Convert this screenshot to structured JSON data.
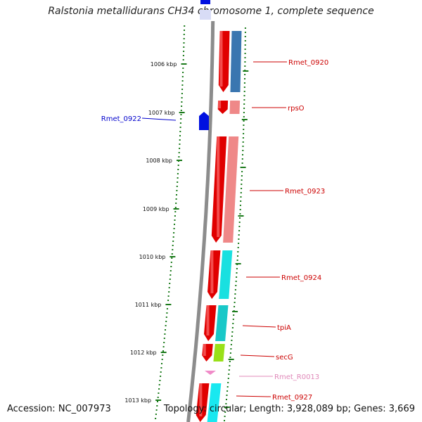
{
  "title": "Ralstonia metallidurans CH34 chromosome 1, complete sequence",
  "accession": "Accession: NC_007973",
  "topology": "Topology: circular; Length: 3,928,089 bp; Genes: 3,669",
  "colors": {
    "backbone": "#8c8c8c",
    "tick": "#1a7a1a",
    "gc_dots": "#1a7a1a",
    "cds": "#e00000",
    "cds_highlight": "#ff6a6a",
    "reverse_gene": "#0010e0",
    "label_red": "#cc0000",
    "label_blue": "#0000cc",
    "label_pink": "#e089b9"
  },
  "ticks": [
    {
      "label": "1006 kbp"
    },
    {
      "label": "1007 kbp"
    },
    {
      "label": "1008 kbp"
    },
    {
      "label": "1009 kbp"
    },
    {
      "label": "1010 kbp"
    },
    {
      "label": "1011 kbp"
    },
    {
      "label": "1012 kbp"
    },
    {
      "label": "1013 kbp"
    }
  ],
  "genes": [
    {
      "name": "Rmet_0920",
      "strand": "+",
      "label_color": "label_red",
      "bar_color": "#3a76b0"
    },
    {
      "name": "rpsO",
      "strand": "+",
      "label_color": "label_red",
      "bar_color": "#ef8888"
    },
    {
      "name": "Rmet_0922",
      "strand": "-",
      "label_color": "label_blue",
      "bar_color": ""
    },
    {
      "name": "Rmet_0923",
      "strand": "+",
      "label_color": "label_red",
      "bar_color": "#ef8888"
    },
    {
      "name": "Rmet_0924",
      "strand": "+",
      "label_color": "label_red",
      "bar_color": "#19e0e0"
    },
    {
      "name": "tpiA",
      "strand": "+",
      "label_color": "label_red",
      "bar_color": "#19c8c8"
    },
    {
      "name": "secG",
      "strand": "+",
      "label_color": "label_red",
      "bar_color": "#99e019"
    },
    {
      "name": "Rmet_R0013",
      "strand": "+",
      "label_color": "label_pink",
      "bar_color": ""
    },
    {
      "name": "Rmet_0927",
      "strand": "+",
      "label_color": "label_red",
      "bar_color": "#19e8f0"
    }
  ]
}
